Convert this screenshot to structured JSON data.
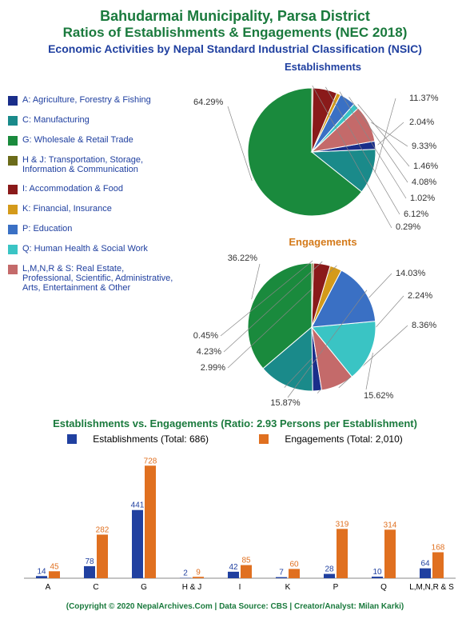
{
  "titles": {
    "line1": "Bahudarmai Municipality, Parsa District",
    "line2": "Ratios of Establishments & Engagements (NEC 2018)",
    "line3": "Economic Activities by Nepal Standard Industrial Classification (NSIC)"
  },
  "pie_titles": {
    "establishments": "Establishments",
    "engagements": "Engagements"
  },
  "legend": [
    {
      "label": "A: Agriculture, Forestry & Fishing",
      "color": "#1a2e8a"
    },
    {
      "label": "C: Manufacturing",
      "color": "#1a8a8a"
    },
    {
      "label": "G: Wholesale & Retail Trade",
      "color": "#1a8a3d"
    },
    {
      "label": "H & J: Transportation, Storage, Information & Communication",
      "color": "#6b6b1a"
    },
    {
      "label": "I: Accommodation & Food",
      "color": "#8a1a1a"
    },
    {
      "label": "K: Financial, Insurance",
      "color": "#d49a1a"
    },
    {
      "label": "P: Education",
      "color": "#3a70c4"
    },
    {
      "label": "Q: Human Health & Social Work",
      "color": "#3ac4c4"
    },
    {
      "label": "L,M,N,R & S: Real Estate, Professional, Scientific, Administrative, Arts, Entertainment & Other",
      "color": "#c46a6a"
    }
  ],
  "pie_establishments": {
    "title_color": "#2040a0",
    "slices": [
      {
        "label": "64.29%",
        "value": 64.29,
        "color": "#1a8a3d"
      },
      {
        "label": "11.37%",
        "value": 11.37,
        "color": "#1a8a8a"
      },
      {
        "label": "2.04%",
        "value": 2.04,
        "color": "#1a2e8a"
      },
      {
        "label": "9.33%",
        "value": 9.33,
        "color": "#c46a6a"
      },
      {
        "label": "1.46%",
        "value": 1.46,
        "color": "#3ac4c4"
      },
      {
        "label": "4.08%",
        "value": 4.08,
        "color": "#3a70c4"
      },
      {
        "label": "1.02%",
        "value": 1.02,
        "color": "#d49a1a"
      },
      {
        "label": "6.12%",
        "value": 6.12,
        "color": "#8a1a1a"
      },
      {
        "label": "0.29%",
        "value": 0.29,
        "color": "#6b6b1a"
      }
    ]
  },
  "pie_engagements": {
    "title_color": "#d47a1a",
    "slices": [
      {
        "label": "36.22%",
        "value": 36.22,
        "color": "#1a8a3d"
      },
      {
        "label": "14.03%",
        "value": 14.03,
        "color": "#1a8a8a"
      },
      {
        "label": "2.24%",
        "value": 2.24,
        "color": "#1a2e8a"
      },
      {
        "label": "8.36%",
        "value": 8.36,
        "color": "#c46a6a"
      },
      {
        "label": "15.62%",
        "value": 15.62,
        "color": "#3ac4c4"
      },
      {
        "label": "15.87%",
        "value": 15.87,
        "color": "#3a70c4"
      },
      {
        "label": "2.99%",
        "value": 2.99,
        "color": "#d49a1a"
      },
      {
        "label": "4.23%",
        "value": 4.23,
        "color": "#8a1a1a"
      },
      {
        "label": "0.45%",
        "value": 0.45,
        "color": "#6b6b1a"
      }
    ]
  },
  "bar_section": {
    "title": "Establishments vs. Engagements (Ratio: 2.93 Persons per Establishment)",
    "legend1": {
      "label": "Establishments (Total: 686)",
      "color": "#2040a0"
    },
    "legend2": {
      "label": "Engagements (Total: 2,010)",
      "color": "#e07020"
    },
    "ymax": 750,
    "categories": [
      "A",
      "C",
      "G",
      "H & J",
      "I",
      "K",
      "P",
      "Q",
      "L,M,N,R & S"
    ],
    "establishments": [
      14,
      78,
      441,
      2,
      42,
      7,
      28,
      10,
      64
    ],
    "engagements": [
      45,
      282,
      728,
      9,
      85,
      60,
      319,
      314,
      168
    ]
  },
  "copyright": "(Copyright © 2020 NepalArchives.Com | Data Source: CBS | Creator/Analyst: Milan Karki)"
}
